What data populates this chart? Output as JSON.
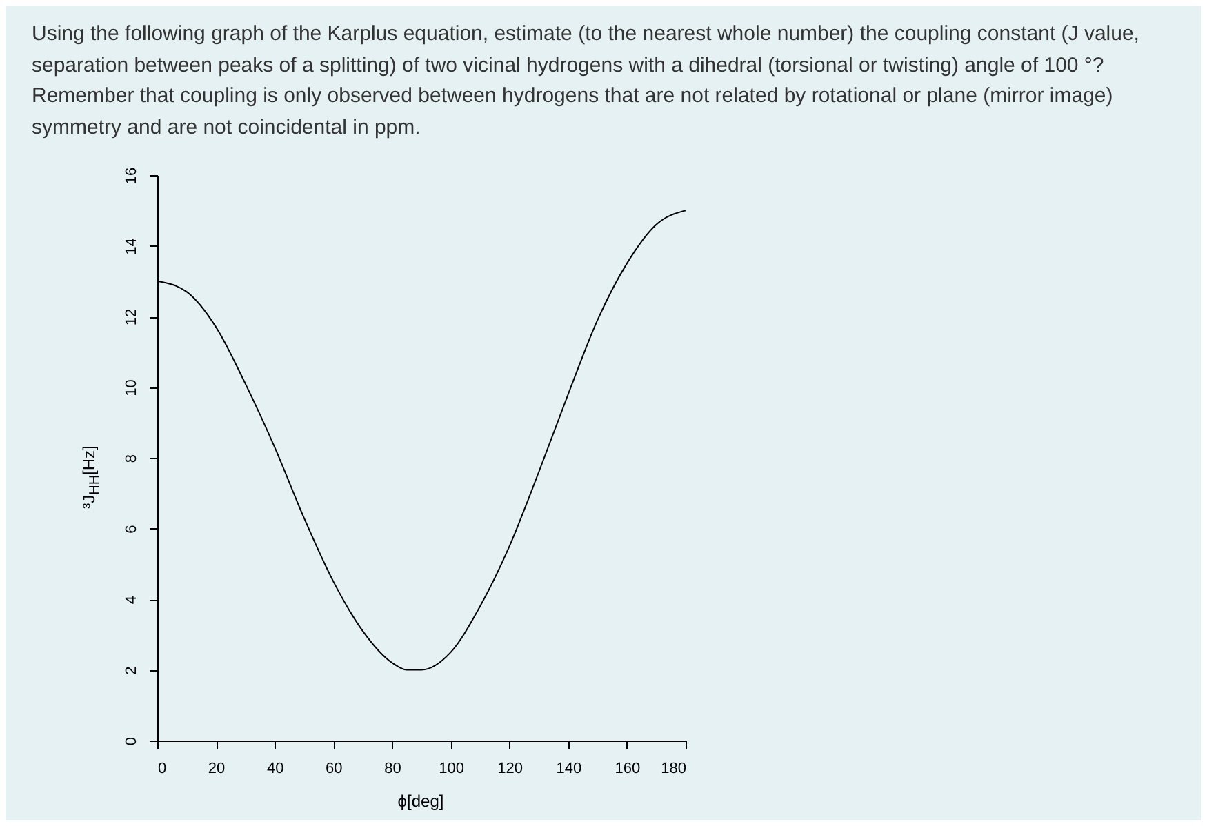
{
  "chart_data": {
    "type": "line",
    "title": "Using the following graph of the Karplus equation, estimate (to the nearest whole number) the coupling constant (J value, separation between peaks of a splitting) of two vicinal hydrogens with a dihedral (torsional or twisting) angle of 100 °? Remember that coupling is only observed between hydrogens that are not related by rotational or plane (mirror image) symmetry and are not coincidental in ppm.",
    "xlabel": "ϕ[deg]",
    "ylabel": "³J$_{HH}$[Hz]",
    "x": [
      0,
      10,
      20,
      30,
      40,
      50,
      60,
      70,
      80,
      85,
      90,
      100,
      110,
      120,
      130,
      140,
      150,
      160,
      170,
      180
    ],
    "series": [
      {
        "color": "#000000",
        "values": [
          13,
          12.7,
          11.7,
          10.1,
          8.3,
          6.3,
          4.5,
          3.1,
          2.2,
          2.0,
          2.0,
          2.5,
          3.8,
          5.5,
          7.6,
          9.8,
          11.9,
          13.5,
          14.6,
          15
        ]
      }
    ],
    "xlim": [
      0,
      180
    ],
    "xticks": [
      0,
      20,
      40,
      60,
      80,
      100,
      120,
      140,
      160,
      180
    ],
    "ylim": [
      0,
      16
    ],
    "yticks": [
      0,
      2,
      4,
      6,
      8,
      10,
      12,
      14,
      16
    ],
    "grid": false,
    "marker": "none",
    "line_style": "solid"
  }
}
